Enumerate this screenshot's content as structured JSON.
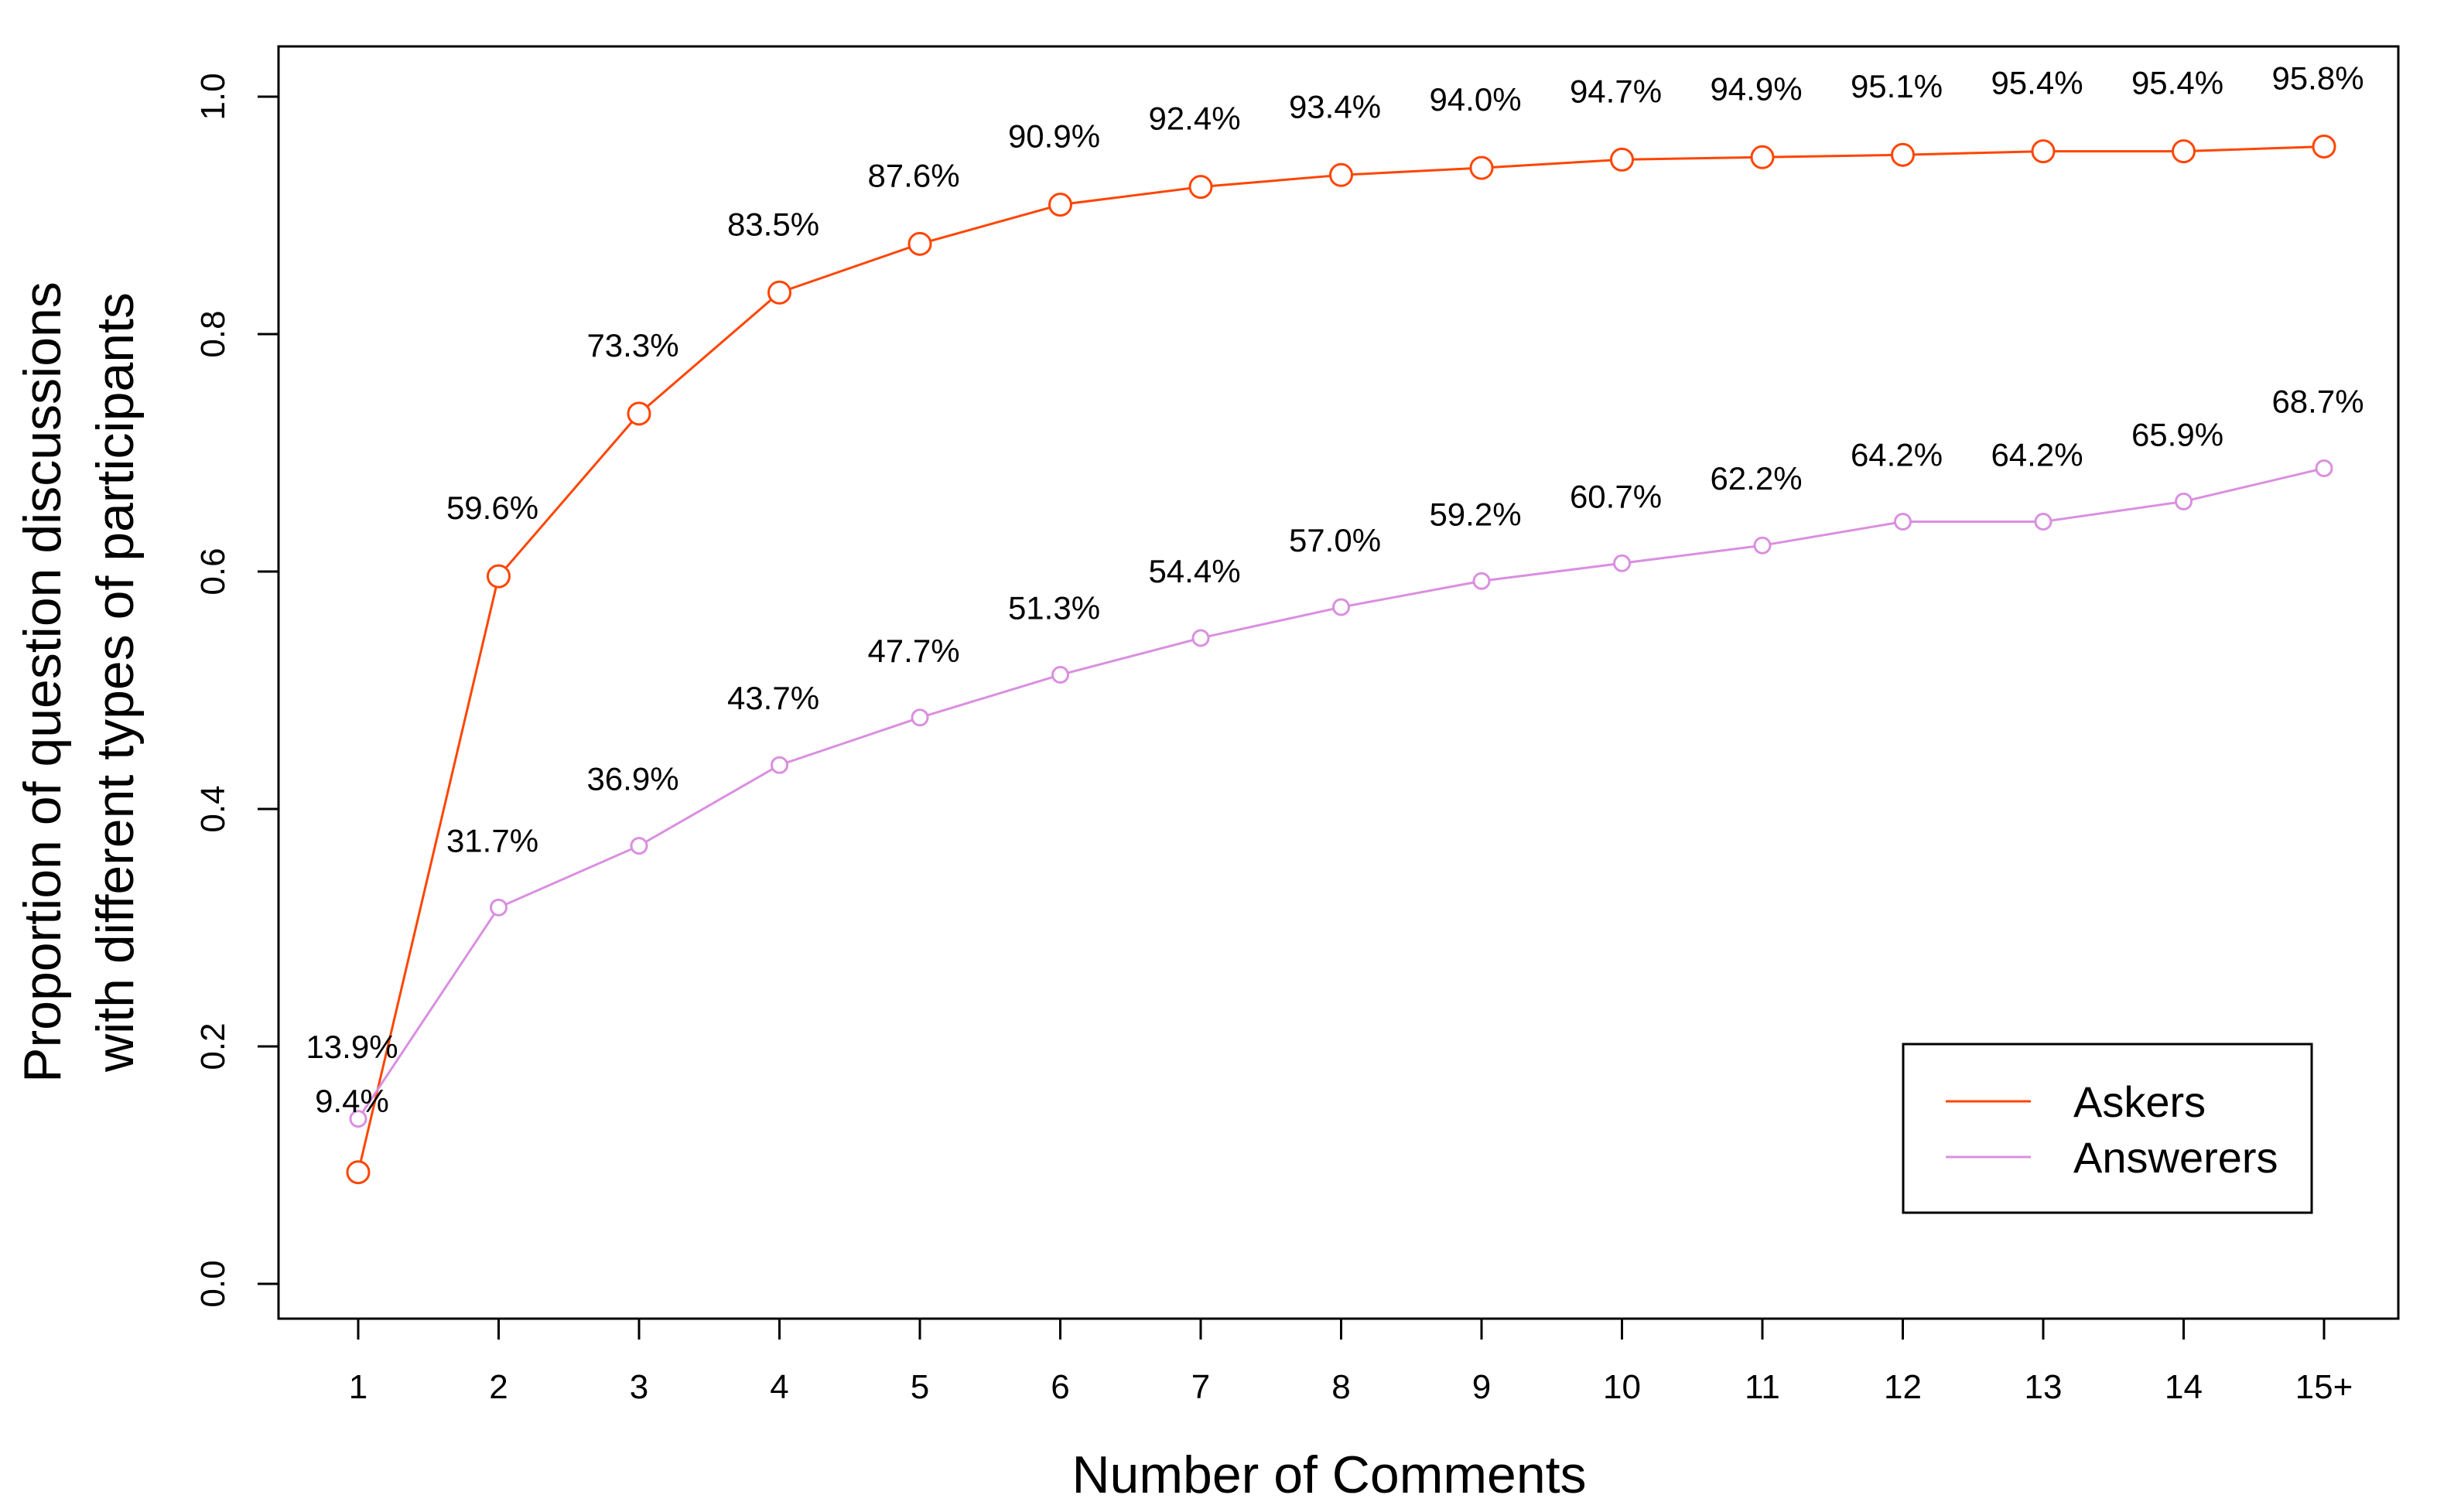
{
  "chart_data": {
    "type": "line",
    "title": "",
    "xlabel": "Number of Comments",
    "ylabel_lines": [
      "Proportion of question discussions",
      "with different types of participants"
    ],
    "categories": [
      "1",
      "2",
      "3",
      "4",
      "5",
      "6",
      "7",
      "8",
      "9",
      "10",
      "11",
      "12",
      "13",
      "14",
      "15+"
    ],
    "ylim": [
      0.0,
      1.0
    ],
    "yticks": [
      "0.0",
      "0.2",
      "0.4",
      "0.6",
      "0.8",
      "1.0"
    ],
    "ytick_values": [
      0.0,
      0.2,
      0.4,
      0.6,
      0.8,
      1.0
    ],
    "grid": false,
    "legend_position": "bottom-right",
    "series": [
      {
        "name": "Askers",
        "color": "#FF4500",
        "marker": "open-circle-large",
        "values": [
          0.094,
          0.596,
          0.733,
          0.835,
          0.876,
          0.909,
          0.924,
          0.934,
          0.94,
          0.947,
          0.949,
          0.951,
          0.954,
          0.954,
          0.958
        ],
        "labels": [
          "9.4%",
          "59.6%",
          "73.3%",
          "83.5%",
          "87.6%",
          "90.9%",
          "92.4%",
          "93.4%",
          "94.0%",
          "94.7%",
          "94.9%",
          "95.1%",
          "95.4%",
          "95.4%",
          "95.8%"
        ]
      },
      {
        "name": "Answerers",
        "color": "#DA8FE0",
        "marker": "open-circle-small",
        "values": [
          0.139,
          0.317,
          0.369,
          0.437,
          0.477,
          0.513,
          0.544,
          0.57,
          0.592,
          0.607,
          0.622,
          0.642,
          0.642,
          0.659,
          0.687
        ],
        "labels": [
          "13.9%",
          "31.7%",
          "36.9%",
          "43.7%",
          "47.7%",
          "51.3%",
          "54.4%",
          "57.0%",
          "59.2%",
          "60.7%",
          "62.2%",
          "64.2%",
          "64.2%",
          "65.9%",
          "68.7%"
        ]
      }
    ]
  }
}
